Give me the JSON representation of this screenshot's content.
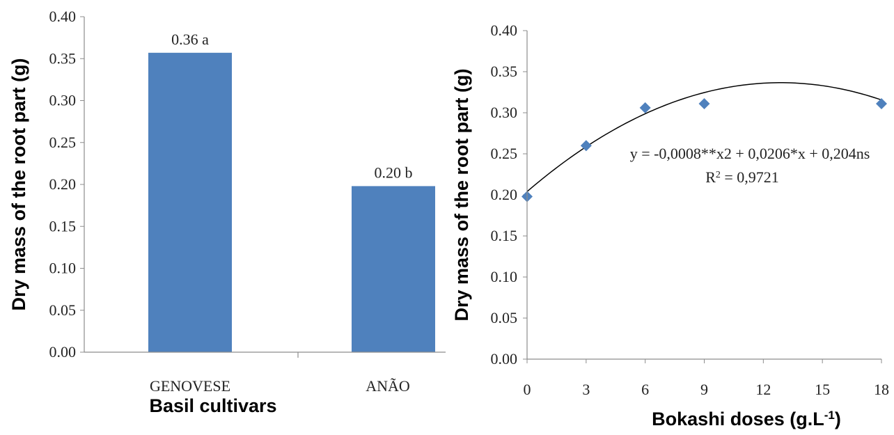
{
  "chart_data": [
    {
      "type": "bar",
      "categories": [
        "GENOVESE",
        "ANÃO"
      ],
      "values": [
        0.357,
        0.198
      ],
      "data_labels": [
        "0.36 a",
        "0.20 b"
      ],
      "xlabel": "Basil cultivars",
      "ylabel": "Dry mass of the root part (g)",
      "ylim": [
        0,
        0.4
      ],
      "yticks": [
        "0.00",
        "0.05",
        "0.10",
        "0.15",
        "0.20",
        "0.25",
        "0.30",
        "0.35",
        "0.40"
      ],
      "bar_color": "#4f81bd",
      "grid": false,
      "legend": "none"
    },
    {
      "type": "scatter",
      "x": [
        0,
        3,
        6,
        9,
        18
      ],
      "y": [
        0.198,
        0.26,
        0.306,
        0.311,
        0.311
      ],
      "xticks": [
        "0",
        "3",
        "6",
        "9",
        "12",
        "15",
        "18"
      ],
      "xlim": [
        0,
        18
      ],
      "ylim": [
        0,
        0.4
      ],
      "yticks": [
        "0.00",
        "0.05",
        "0.10",
        "0.15",
        "0.20",
        "0.25",
        "0.30",
        "0.35",
        "0.40"
      ],
      "xlabel": "Bokashi doses (g.L",
      "xlabel_superscript": "-1",
      "xlabel_suffix": ")",
      "ylabel": "Dry mass of the root part (g)",
      "equation": "y = -0,0008**x2 + 0,0206*x + 0,204ns",
      "r2_label": "R",
      "r2_superscript": "2",
      "r2_value": " = 0,9721",
      "trend_coefficients": {
        "a": -0.0008,
        "b": 0.0206,
        "c": 0.204
      },
      "marker": "diamond",
      "marker_color": "#4f81bd",
      "grid": false,
      "legend": "none"
    }
  ]
}
